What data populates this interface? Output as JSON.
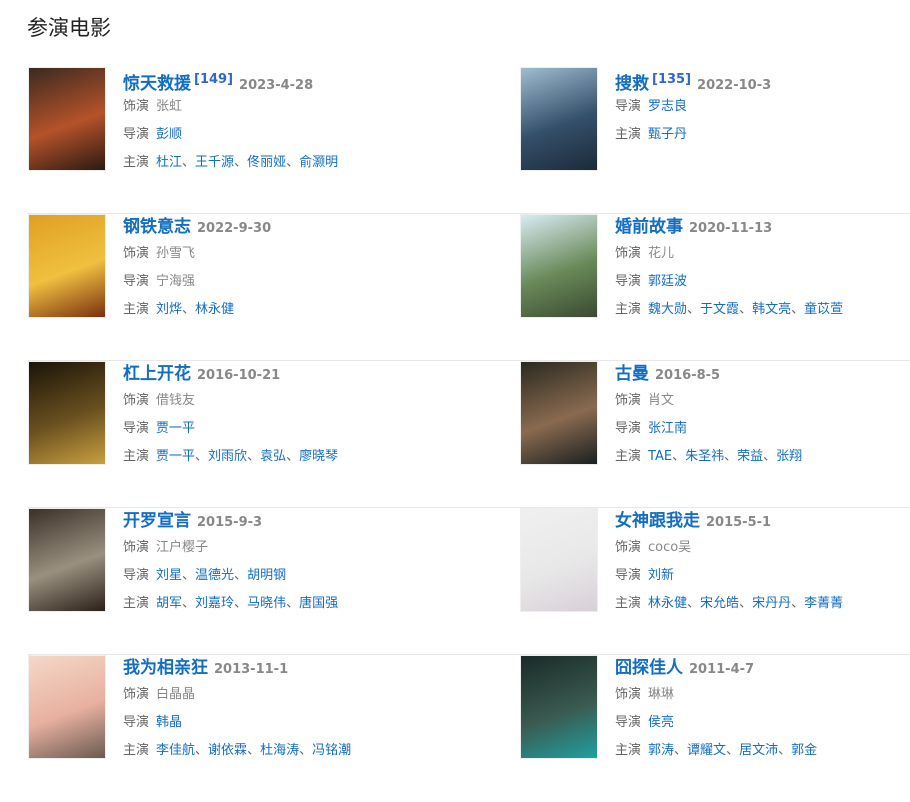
{
  "section_title": "参演电影",
  "labels": {
    "role": "饰演",
    "director": "导演",
    "cast": "主演"
  },
  "films": [
    {
      "title": "惊天救援",
      "ref": "[149]",
      "date": "2023-4-28",
      "role": "张虹",
      "director": [
        "彭顺"
      ],
      "cast": [
        "杜江",
        "王千源",
        "佟丽娅",
        "俞灏明"
      ],
      "poster_colors": [
        "#3a2a20",
        "#b5522a",
        "#2a1a12"
      ]
    },
    {
      "title": "搜救",
      "ref": "[135]",
      "date": "2022-10-3",
      "director": [
        "罗志良"
      ],
      "cast": [
        "甄子丹"
      ],
      "poster_colors": [
        "#9fbcd0",
        "#35506a",
        "#1c2a3a"
      ]
    },
    {
      "title": "钢铁意志",
      "date": "2022-9-30",
      "role": "孙雪飞",
      "director_plain": "宁海强",
      "cast": [
        "刘烨",
        "林永健"
      ],
      "poster_colors": [
        "#e0a020",
        "#f0c040",
        "#7a3010"
      ]
    },
    {
      "title": "婚前故事",
      "date": "2020-11-13",
      "role": "花儿",
      "director": [
        "郭廷波"
      ],
      "cast": [
        "魏大勋",
        "于文霞",
        "韩文亮",
        "童苡萱"
      ],
      "poster_colors": [
        "#d8ecf4",
        "#6a8a5a",
        "#3a4a30"
      ]
    },
    {
      "title": "杠上开花",
      "date": "2016-10-21",
      "role": "借钱友",
      "director": [
        "贾一平"
      ],
      "cast": [
        "贾一平",
        "刘雨欣",
        "袁弘",
        "廖晓琴"
      ],
      "poster_colors": [
        "#1a1408",
        "#6a5020",
        "#c8a040"
      ]
    },
    {
      "title": "古曼",
      "date": "2016-8-5",
      "role": "肖文",
      "director": [
        "张江南"
      ],
      "cast": [
        "TAE",
        "朱圣祎",
        "荣益",
        "张翔"
      ],
      "poster_colors": [
        "#2a2a20",
        "#8a6a50",
        "#1a2020"
      ]
    },
    {
      "title": "开罗宣言",
      "date": "2015-9-3",
      "role": "江户樱子",
      "director": [
        "刘星",
        "温德光",
        "胡明钢"
      ],
      "cast": [
        "胡军",
        "刘嘉玲",
        "马晓伟",
        "唐国强"
      ],
      "poster_colors": [
        "#3a3028",
        "#9a9080",
        "#2a2018"
      ]
    },
    {
      "title": "女神跟我走",
      "date": "2015-5-1",
      "role": "coco吴",
      "director": [
        "刘新"
      ],
      "cast": [
        "林永健",
        "宋允皓",
        "宋丹丹",
        "李菁菁"
      ],
      "poster_colors": [
        "#f0f0f0",
        "#e8e8e8",
        "#d8d0d8"
      ]
    },
    {
      "title": "我为相亲狂",
      "date": "2013-11-1",
      "role": "白晶晶",
      "director": [
        "韩晶"
      ],
      "cast": [
        "李佳航",
        "谢依霖",
        "杜海涛",
        "冯铭潮"
      ],
      "poster_colors": [
        "#f4d8c8",
        "#e8b0a0",
        "#6a5a50"
      ]
    },
    {
      "title": "囧探佳人",
      "date": "2011-4-7",
      "role": "琳琳",
      "director": [
        "侯亮"
      ],
      "cast": [
        "郭涛",
        "谭耀文",
        "居文沛",
        "郭金"
      ],
      "poster_colors": [
        "#1a2a28",
        "#3a5a50",
        "#20a0a0"
      ]
    }
  ]
}
